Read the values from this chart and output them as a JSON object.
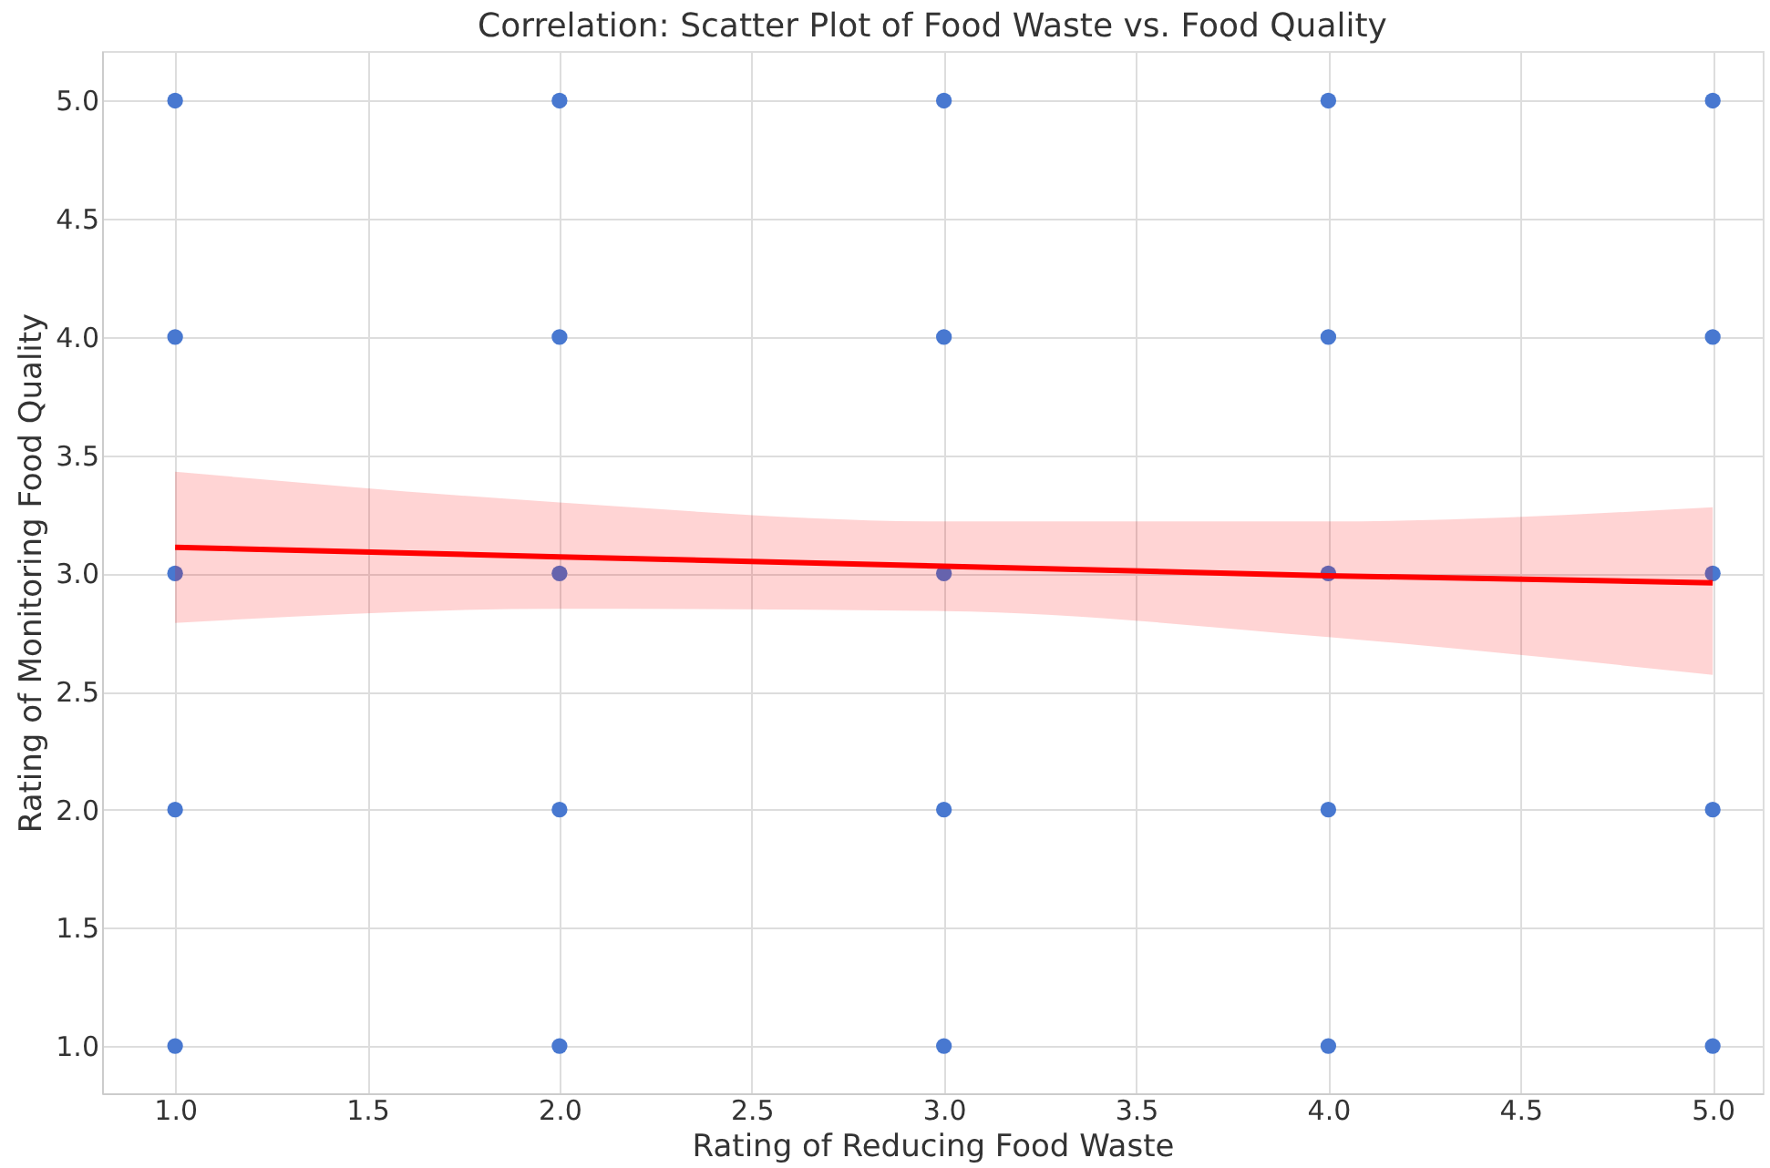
{
  "chart_data": {
    "type": "scatter",
    "title": "Correlation: Scatter Plot of Food Waste vs. Food Quality",
    "xlabel": "Rating of Reducing Food Waste",
    "ylabel": "Rating of Monitoring Food Quality",
    "xlim": [
      0.81,
      5.13
    ],
    "ylim": [
      0.8,
      5.21
    ],
    "xticks": [
      {
        "value": 1,
        "label": "1.0"
      },
      {
        "value": 1.5,
        "label": "1.5"
      },
      {
        "value": 2,
        "label": "2.0"
      },
      {
        "value": 2.5,
        "label": "2.5"
      },
      {
        "value": 3,
        "label": "3.0"
      },
      {
        "value": 3.5,
        "label": "3.5"
      },
      {
        "value": 4,
        "label": "4.0"
      },
      {
        "value": 4.5,
        "label": "4.5"
      },
      {
        "value": 5,
        "label": "5.0"
      }
    ],
    "yticks": [
      {
        "value": 1,
        "label": "1.0"
      },
      {
        "value": 1.5,
        "label": "1.5"
      },
      {
        "value": 2,
        "label": "2.0"
      },
      {
        "value": 2.5,
        "label": "2.5"
      },
      {
        "value": 3,
        "label": "3.0"
      },
      {
        "value": 3.5,
        "label": "3.5"
      },
      {
        "value": 4,
        "label": "4.0"
      },
      {
        "value": 4.5,
        "label": "4.5"
      },
      {
        "value": 5,
        "label": "5.0"
      }
    ],
    "grid": true,
    "marker": "circle",
    "series": [
      {
        "color": "#4878d0",
        "x": [
          1,
          1,
          1,
          1,
          1,
          2,
          2,
          2,
          2,
          2,
          3,
          3,
          3,
          3,
          3,
          4,
          4,
          4,
          4,
          4,
          5,
          5,
          5,
          5,
          5
        ],
        "values": [
          1,
          2,
          3,
          4,
          5,
          1,
          2,
          3,
          4,
          5,
          1,
          2,
          3,
          4,
          5,
          1,
          2,
          3,
          4,
          5,
          1,
          2,
          3,
          4,
          5
        ]
      },
      {
        "type": "line",
        "color": "#ff0000",
        "line_style": "solid",
        "marker": "none",
        "x": [
          1,
          2,
          3,
          4,
          5
        ],
        "values": [
          3.11,
          3.07,
          3.03,
          2.99,
          2.96
        ],
        "lower": [
          2.79,
          2.85,
          2.84,
          2.73,
          2.57
        ],
        "upper": [
          3.43,
          3.3,
          3.22,
          3.22,
          3.28
        ]
      }
    ]
  }
}
